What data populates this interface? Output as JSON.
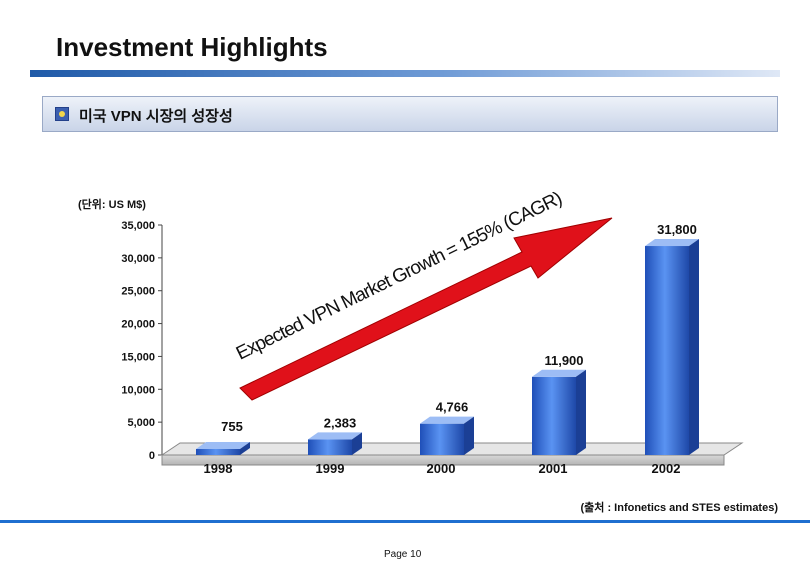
{
  "header": {
    "title": "Investment Highlights"
  },
  "section": {
    "label": "미국 VPN 시장의 성장성"
  },
  "chart_data": {
    "type": "bar",
    "categories": [
      "1998",
      "1999",
      "2000",
      "2001",
      "2002"
    ],
    "values": [
      755,
      2383,
      4766,
      11900,
      31800
    ],
    "value_labels": [
      "755",
      "2,383",
      "4,766",
      "11,900",
      "31,800"
    ],
    "yticks": [
      "0",
      "5,000",
      "10,000",
      "15,000",
      "20,000",
      "25,000",
      "30,000",
      "35,000"
    ],
    "ylim": [
      0,
      35000
    ],
    "unit_label": "(단위: US M$)",
    "annotation": "Expected VPN Market Growth = 155% (CAGR)",
    "bar_color": "#3f7be6",
    "arrow_color": "#e0111a",
    "grid": false
  },
  "footer": {
    "source": "(출처 : Infonetics and STES estimates)",
    "page": "Page 10"
  }
}
